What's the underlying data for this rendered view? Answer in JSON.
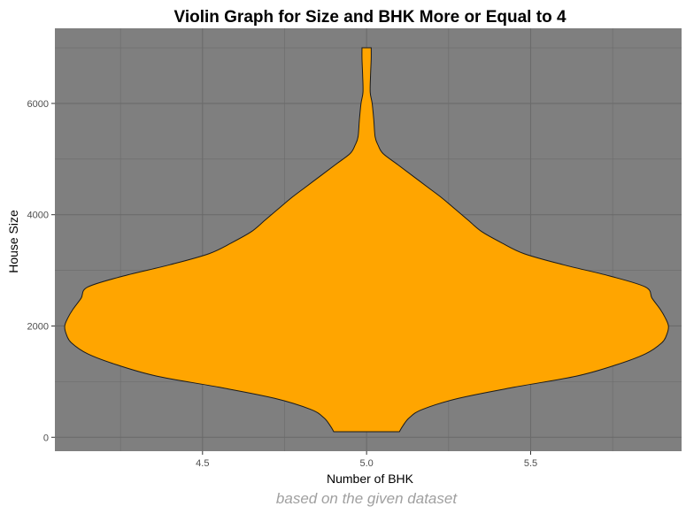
{
  "chart_data": {
    "type": "violin",
    "title": "Violin Graph for Size and BHK More or Equal to 4",
    "xlabel": "Number of BHK",
    "ylabel": "House Size",
    "caption": "based on the given dataset",
    "xlim": [
      4.05,
      5.96
    ],
    "ylim": [
      -250,
      7350
    ],
    "x_ticks": [
      4.5,
      5.0,
      5.5
    ],
    "x_tick_labels": [
      "4.5",
      "5.0",
      "5.5"
    ],
    "y_ticks": [
      0,
      2000,
      4000,
      6000
    ],
    "y_tick_labels": [
      "0",
      "2000",
      "4000",
      "6000"
    ],
    "grid": true,
    "fill_color": "#ffa500",
    "outline_color": "#1a1a1a",
    "panel_color": "#7f7f7f",
    "grid_color": "#6b6b6b",
    "violin": {
      "category": 5.0,
      "y_min": 100,
      "y_max": 7000,
      "half_width_profile": [
        [
          100,
          0.1
        ],
        [
          200,
          0.11
        ],
        [
          350,
          0.13
        ],
        [
          500,
          0.17
        ],
        [
          700,
          0.28
        ],
        [
          900,
          0.45
        ],
        [
          1100,
          0.64
        ],
        [
          1300,
          0.76
        ],
        [
          1500,
          0.85
        ],
        [
          1700,
          0.9
        ],
        [
          1850,
          0.915
        ],
        [
          2000,
          0.92
        ],
        [
          2150,
          0.91
        ],
        [
          2300,
          0.895
        ],
        [
          2500,
          0.87
        ],
        [
          2700,
          0.85
        ],
        [
          2900,
          0.74
        ],
        [
          3100,
          0.6
        ],
        [
          3300,
          0.48
        ],
        [
          3500,
          0.41
        ],
        [
          3700,
          0.35
        ],
        [
          3900,
          0.31
        ],
        [
          4100,
          0.27
        ],
        [
          4300,
          0.23
        ],
        [
          4500,
          0.185
        ],
        [
          4700,
          0.14
        ],
        [
          4900,
          0.095
        ],
        [
          5100,
          0.05
        ],
        [
          5250,
          0.035
        ],
        [
          5400,
          0.026
        ],
        [
          5700,
          0.022
        ],
        [
          6000,
          0.017
        ],
        [
          6200,
          0.011
        ],
        [
          6500,
          0.012
        ],
        [
          6800,
          0.014
        ],
        [
          7000,
          0.014
        ]
      ]
    }
  }
}
